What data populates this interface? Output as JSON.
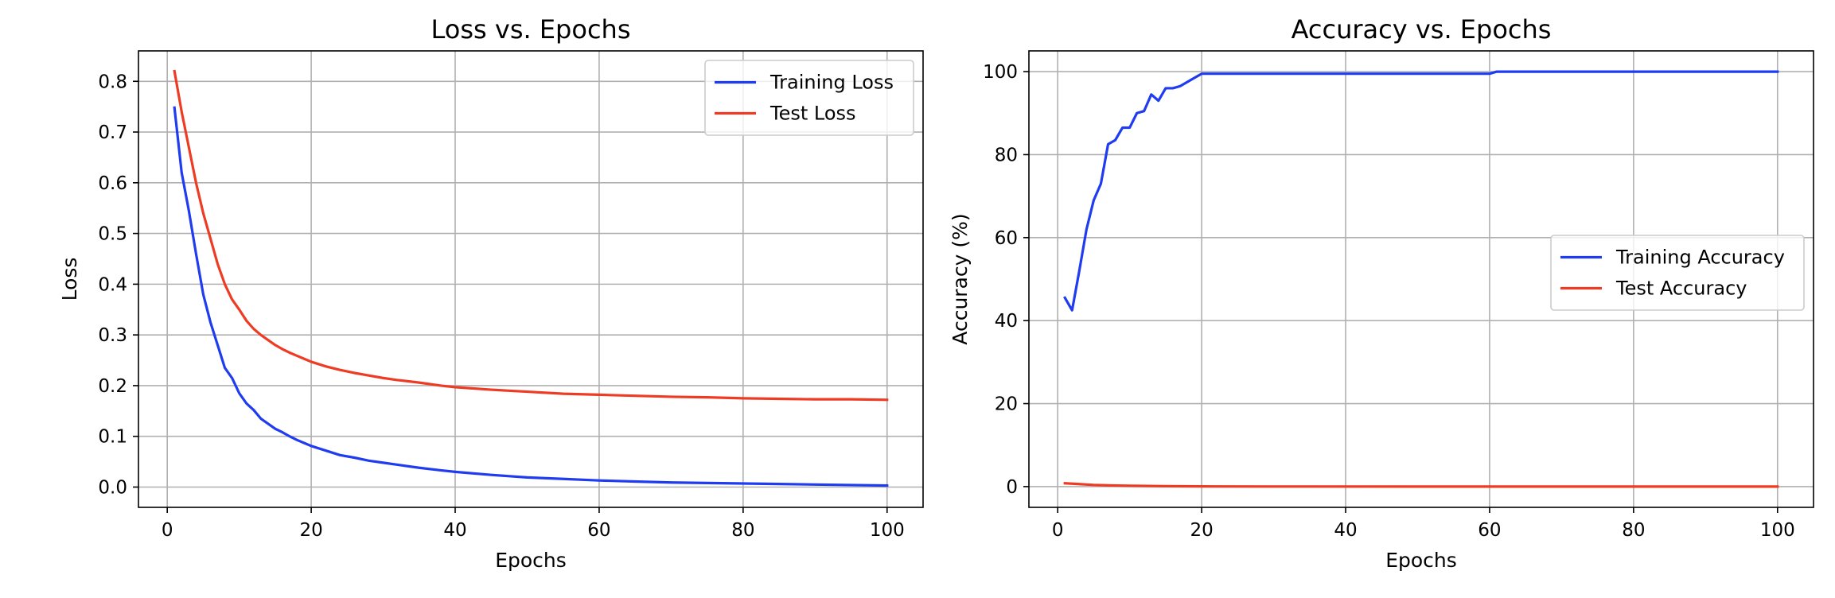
{
  "chart_data": [
    {
      "type": "line",
      "title": "Loss vs. Epochs",
      "xlabel": "Epochs",
      "ylabel": "Loss",
      "xlim": [
        -4,
        105
      ],
      "ylim": [
        -0.04,
        0.86
      ],
      "xticks": [
        0,
        20,
        40,
        60,
        80,
        100
      ],
      "xtick_labels": [
        "0",
        "20",
        "40",
        "60",
        "80",
        "100"
      ],
      "yticks": [
        0.0,
        0.1,
        0.2,
        0.3,
        0.4,
        0.5,
        0.6,
        0.7,
        0.8
      ],
      "ytick_labels": [
        "0.0",
        "0.1",
        "0.2",
        "0.3",
        "0.4",
        "0.5",
        "0.6",
        "0.7",
        "0.8"
      ],
      "grid": true,
      "legend_position": "upper right",
      "series": [
        {
          "name": "Training Loss",
          "color": "#1f3cf0",
          "points": [
            [
              1,
              0.748
            ],
            [
              2,
              0.62
            ],
            [
              3,
              0.545
            ],
            [
              4,
              0.46
            ],
            [
              5,
              0.38
            ],
            [
              6,
              0.325
            ],
            [
              7,
              0.28
            ],
            [
              8,
              0.235
            ],
            [
              9,
              0.215
            ],
            [
              10,
              0.185
            ],
            [
              11,
              0.165
            ],
            [
              12,
              0.152
            ],
            [
              13,
              0.135
            ],
            [
              14,
              0.125
            ],
            [
              15,
              0.115
            ],
            [
              16,
              0.108
            ],
            [
              17,
              0.1
            ],
            [
              18,
              0.093
            ],
            [
              19,
              0.087
            ],
            [
              20,
              0.081
            ],
            [
              22,
              0.072
            ],
            [
              24,
              0.063
            ],
            [
              26,
              0.058
            ],
            [
              28,
              0.052
            ],
            [
              30,
              0.048
            ],
            [
              32,
              0.044
            ],
            [
              35,
              0.038
            ],
            [
              38,
              0.033
            ],
            [
              40,
              0.03
            ],
            [
              45,
              0.024
            ],
            [
              50,
              0.019
            ],
            [
              55,
              0.016
            ],
            [
              60,
              0.013
            ],
            [
              65,
              0.011
            ],
            [
              70,
              0.009
            ],
            [
              75,
              0.008
            ],
            [
              80,
              0.007
            ],
            [
              85,
              0.006
            ],
            [
              90,
              0.005
            ],
            [
              95,
              0.004
            ],
            [
              100,
              0.003
            ]
          ]
        },
        {
          "name": "Test Loss",
          "color": "#ee3b23",
          "points": [
            [
              1,
              0.82
            ],
            [
              2,
              0.74
            ],
            [
              3,
              0.67
            ],
            [
              4,
              0.6
            ],
            [
              5,
              0.54
            ],
            [
              6,
              0.49
            ],
            [
              7,
              0.44
            ],
            [
              8,
              0.4
            ],
            [
              9,
              0.37
            ],
            [
              10,
              0.35
            ],
            [
              11,
              0.328
            ],
            [
              12,
              0.312
            ],
            [
              13,
              0.3
            ],
            [
              14,
              0.29
            ],
            [
              15,
              0.28
            ],
            [
              16,
              0.272
            ],
            [
              17,
              0.265
            ],
            [
              18,
              0.259
            ],
            [
              19,
              0.253
            ],
            [
              20,
              0.247
            ],
            [
              22,
              0.238
            ],
            [
              24,
              0.231
            ],
            [
              26,
              0.225
            ],
            [
              28,
              0.22
            ],
            [
              30,
              0.215
            ],
            [
              32,
              0.211
            ],
            [
              35,
              0.206
            ],
            [
              38,
              0.2
            ],
            [
              40,
              0.197
            ],
            [
              45,
              0.192
            ],
            [
              50,
              0.188
            ],
            [
              55,
              0.184
            ],
            [
              60,
              0.182
            ],
            [
              65,
              0.18
            ],
            [
              70,
              0.178
            ],
            [
              75,
              0.177
            ],
            [
              80,
              0.175
            ],
            [
              85,
              0.174
            ],
            [
              90,
              0.173
            ],
            [
              95,
              0.173
            ],
            [
              100,
              0.172
            ]
          ]
        }
      ]
    },
    {
      "type": "line",
      "title": "Accuracy vs. Epochs",
      "xlabel": "Epochs",
      "ylabel": "Accuracy (%)",
      "xlim": [
        -4,
        105
      ],
      "ylim": [
        -5,
        105
      ],
      "xticks": [
        0,
        20,
        40,
        60,
        80,
        100
      ],
      "xtick_labels": [
        "0",
        "20",
        "40",
        "60",
        "80",
        "100"
      ],
      "yticks": [
        0,
        20,
        40,
        60,
        80,
        100
      ],
      "ytick_labels": [
        "0",
        "20",
        "40",
        "60",
        "80",
        "100"
      ],
      "grid": true,
      "legend_position": "center right",
      "series": [
        {
          "name": "Training Accuracy",
          "color": "#1f3cf0",
          "points": [
            [
              1,
              45.5
            ],
            [
              2,
              42.5
            ],
            [
              3,
              52
            ],
            [
              4,
              62
            ],
            [
              5,
              69
            ],
            [
              6,
              73
            ],
            [
              7,
              82.5
            ],
            [
              8,
              83.5
            ],
            [
              9,
              86.5
            ],
            [
              10,
              86.5
            ],
            [
              11,
              90
            ],
            [
              12,
              90.5
            ],
            [
              13,
              94.5
            ],
            [
              14,
              93
            ],
            [
              15,
              96
            ],
            [
              16,
              96
            ],
            [
              17,
              96.5
            ],
            [
              18,
              97.5
            ],
            [
              19,
              98.5
            ],
            [
              20,
              99.5
            ],
            [
              25,
              99.5
            ],
            [
              30,
              99.5
            ],
            [
              40,
              99.5
            ],
            [
              50,
              99.5
            ],
            [
              60,
              99.5
            ],
            [
              61,
              100
            ],
            [
              70,
              100
            ],
            [
              80,
              100
            ],
            [
              90,
              100
            ],
            [
              100,
              100
            ]
          ]
        },
        {
          "name": "Test Accuracy",
          "color": "#ee3b23",
          "points": [
            [
              1,
              0.8
            ],
            [
              3,
              0.6
            ],
            [
              5,
              0.4
            ],
            [
              7,
              0.3
            ],
            [
              10,
              0.2
            ],
            [
              15,
              0.1
            ],
            [
              20,
              0.05
            ],
            [
              30,
              0.02
            ],
            [
              50,
              0.0
            ],
            [
              100,
              0.0
            ]
          ]
        }
      ]
    }
  ]
}
